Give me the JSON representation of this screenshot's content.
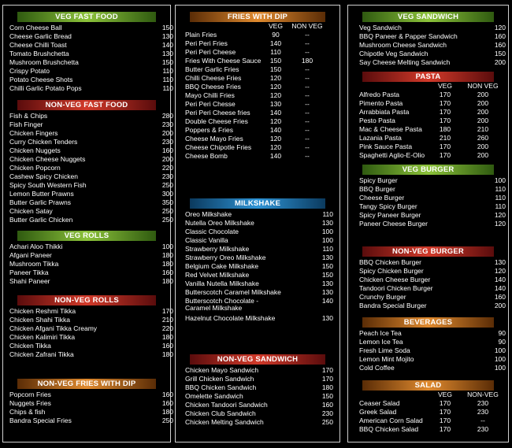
{
  "col1": {
    "sections": [
      {
        "title": "VEG FAST FOOD",
        "color": "green",
        "items": [
          {
            "name": "Corn Cheese Ball",
            "price": "150"
          },
          {
            "name": "Cheese Garlic Bread",
            "price": "130"
          },
          {
            "name": "Cheese Chilli Toast",
            "price": "140"
          },
          {
            "name": "Tomato Brushchetta",
            "price": "130"
          },
          {
            "name": "Mushroom Brushchetta",
            "price": "150"
          },
          {
            "name": "Crispy Potato",
            "price": "110"
          },
          {
            "name": "Potato Cheese Shots",
            "price": "110"
          },
          {
            "name": "Chilli Garlic Potato Pops",
            "price": "110"
          }
        ]
      },
      {
        "title": "NON-VEG FAST FOOD",
        "color": "red",
        "items": [
          {
            "name": "Fish & Chips",
            "price": "280"
          },
          {
            "name": "Fish Finger",
            "price": "230"
          },
          {
            "name": "Chicken Fingers",
            "price": "200"
          },
          {
            "name": "Curry Chicken Tenders",
            "price": "230"
          },
          {
            "name": "Chicken Nuggets",
            "price": "160"
          },
          {
            "name": "Chicken Cheese Nuggets",
            "price": "200"
          },
          {
            "name": "Chicken Popcorn",
            "price": "220"
          },
          {
            "name": "Cashew Spicy Chicken",
            "price": "230"
          },
          {
            "name": "Spicy South Western Fish",
            "price": "250"
          },
          {
            "name": "Lemon Butter Prawns",
            "price": "300"
          },
          {
            "name": "Butter Garlic Prawns",
            "price": "350"
          },
          {
            "name": "Chicken Satay",
            "price": "250"
          },
          {
            "name": "Butter Garlic Chicken",
            "price": "250"
          }
        ]
      },
      {
        "title": "VEG ROLLS",
        "color": "green",
        "items": [
          {
            "name": "Achari Aloo Thikki",
            "price": "100"
          },
          {
            "name": "Afgani Paneer",
            "price": "180"
          },
          {
            "name": "Mushroom Tikka",
            "price": "180"
          },
          {
            "name": "Paneer Tikka",
            "price": "160"
          },
          {
            "name": "Shahi Paneer",
            "price": "180"
          }
        ]
      },
      {
        "title": "NON-VEG ROLLS",
        "color": "red",
        "items": [
          {
            "name": "Chicken Reshmi Tikka",
            "price": "170"
          },
          {
            "name": "Chicken Shahi Tikka",
            "price": "210"
          },
          {
            "name": "Chicken Afgani Tikka Creamy",
            "price": "220"
          },
          {
            "name": "Chicken Kalimiri Tikka",
            "price": "180"
          },
          {
            "name": "Chicken Tikka",
            "price": "160"
          },
          {
            "name": "Chicken Zafrani Tikka",
            "price": "180"
          }
        ]
      },
      {
        "title": "NON-VEG FRIES WITH DIP",
        "color": "orange",
        "items": [
          {
            "name": "Popcorn Fries",
            "price": "160"
          },
          {
            "name": "Nuggets Fries",
            "price": "160"
          },
          {
            "name": "Chips & fish",
            "price": "180"
          },
          {
            "name": "Bandra Special Fries",
            "price": "250"
          }
        ]
      }
    ]
  },
  "col2": {
    "sections": [
      {
        "title": "FRIES WITH DIP",
        "color": "orange",
        "veg_label": "VEG",
        "nonveg_label": "NON VEG",
        "items": [
          {
            "name": "Plain Fries",
            "veg": "90",
            "nonveg": "--"
          },
          {
            "name": "Peri Peri Fries",
            "veg": "140",
            "nonveg": "--"
          },
          {
            "name": "Peri Peri Cheese",
            "veg": "110",
            "nonveg": "--"
          },
          {
            "name": "Fries With Cheese Sauce",
            "veg": "150",
            "nonveg": "180"
          },
          {
            "name": "Butter Garlic Fries",
            "veg": "150",
            "nonveg": "--"
          },
          {
            "name": "Chilli Cheese Fries",
            "veg": "120",
            "nonveg": "--"
          },
          {
            "name": "BBQ Cheese Fries",
            "veg": "120",
            "nonveg": "--"
          },
          {
            "name": "Mayo Chilli Fries",
            "veg": "120",
            "nonveg": "--"
          },
          {
            "name": "Peri Peri Chesse",
            "veg": "130",
            "nonveg": "--"
          },
          {
            "name": "Peri Peri Cheese fries",
            "veg": "140",
            "nonveg": "--"
          },
          {
            "name": "Double Cheese Fries",
            "veg": "120",
            "nonveg": "--"
          },
          {
            "name": "Poppers & Fries",
            "veg": "140",
            "nonveg": "--"
          },
          {
            "name": "Cheese Mayo Fries",
            "veg": "120",
            "nonveg": "--"
          },
          {
            "name": "Cheese Chipotle Fries",
            "veg": "120",
            "nonveg": "--"
          },
          {
            "name": "Cheese Bomb",
            "veg": "140",
            "nonveg": "--"
          }
        ]
      },
      {
        "title": "MILKSHAKE",
        "color": "blue",
        "items": [
          {
            "name": "Oreo Milkshake",
            "price": "110"
          },
          {
            "name": "Nutella Oreo Milkshake",
            "price": "130"
          },
          {
            "name": "Classic Chocolate",
            "price": "100"
          },
          {
            "name": "Classic Vanilla",
            "price": "100"
          },
          {
            "name": "Strawberry Milkshake",
            "price": "110"
          },
          {
            "name": "Strawberry Oreo  Milkshake",
            "price": "130"
          },
          {
            "name": "Belgium Cake Milkshake",
            "price": "150"
          },
          {
            "name": "Red Velvet Milkshake",
            "price": "150"
          },
          {
            "name": "Vanilla Nutella Milkshake",
            "price": "130"
          },
          {
            "name": "Butterscotch Caramel Milkshake",
            "price": "130"
          },
          {
            "name": "Butterscotch Chocolate -",
            "name2": "Caramel Milkshake",
            "price": "140"
          },
          {
            "name": "Hazelnut Chocolate Milkshake",
            "price": "130"
          }
        ]
      },
      {
        "title": "NON-VEG SANDWICH",
        "color": "red",
        "items": [
          {
            "name": "Chicken Mayo Sandwich",
            "price": "170"
          },
          {
            "name": "Grill Chicken Sandwich",
            "price": "170"
          },
          {
            "name": "BBQ Chicken Sandwich",
            "price": "180"
          },
          {
            "name": "Omelette Sandwich",
            "price": "150"
          },
          {
            "name": "Chicken Tandoori Sandwich",
            "price": "160"
          },
          {
            "name": "Chicken Club Sandwich",
            "price": "230"
          },
          {
            "name": "Chicken Melting Sandwich",
            "price": "250"
          }
        ]
      }
    ]
  },
  "col3": {
    "sections": [
      {
        "title": "VEG SANDWICH",
        "color": "green",
        "items": [
          {
            "name": "Veg Sandwich",
            "price": "120"
          },
          {
            "name": "BBQ Paneer & Papper Sandwich",
            "price": "160"
          },
          {
            "name": "Mushroom Cheese Sandwich",
            "price": "160"
          },
          {
            "name": "Chipotle Veg Sandwich",
            "price": "150"
          },
          {
            "name": "Say Cheese Melting Sandwich",
            "price": "200"
          }
        ]
      },
      {
        "title": "PASTA",
        "color": "red",
        "veg_label": "VEG",
        "nonveg_label": "NON VEG",
        "items": [
          {
            "name": "Alfredo Pasta",
            "veg": "170",
            "nonveg": "200"
          },
          {
            "name": "Pimento Pasta",
            "veg": "170",
            "nonveg": "200"
          },
          {
            "name": "Arrabbiata Pasta",
            "veg": "170",
            "nonveg": "200"
          },
          {
            "name": "Pesto Pasta",
            "veg": "170",
            "nonveg": "200"
          },
          {
            "name": "Mac & Cheese Pasta",
            "veg": "180",
            "nonveg": "210"
          },
          {
            "name": "Lazania Pasta",
            "veg": "210",
            "nonveg": "260"
          },
          {
            "name": "Pink Sauce Pasta",
            "veg": "170",
            "nonveg": "200"
          },
          {
            "name": "Spaghetti Aglio-E-Olio",
            "veg": "170",
            "nonveg": "200"
          }
        ]
      },
      {
        "title": "VEG BURGER",
        "color": "green",
        "items": [
          {
            "name": "Spicy Burger",
            "price": "100"
          },
          {
            "name": "BBQ Burger",
            "price": "110"
          },
          {
            "name": "Cheese Burger",
            "price": "110"
          },
          {
            "name": "Tangy Spicy Burger",
            "price": "110"
          },
          {
            "name": "Spicy Paneer Burger",
            "price": "120"
          },
          {
            "name": "Paneer Cheese Burger",
            "price": "120"
          }
        ]
      },
      {
        "title": "NON-VEG BURGER",
        "color": "red",
        "items": [
          {
            "name": "BBQ Chicken Burger",
            "price": "130"
          },
          {
            "name": "Spicy Chicken Burger",
            "price": "120"
          },
          {
            "name": "Chicken Cheese Burger",
            "price": "140"
          },
          {
            "name": "Tandoori Chicken Burger",
            "price": "140"
          },
          {
            "name": "Crunchy Burger",
            "price": "160"
          },
          {
            "name": "Bandra Special Burger",
            "price": "200"
          }
        ]
      },
      {
        "title": "BEVERAGES",
        "color": "orange",
        "items": [
          {
            "name": "Peach Ice Tea",
            "price": "90"
          },
          {
            "name": "Lemon Ice Tea",
            "price": "90"
          },
          {
            "name": "Fresh Lime Soda",
            "price": "100"
          },
          {
            "name": "Lemon  Mint Mojito",
            "price": "100"
          },
          {
            "name": "Cold Coffee",
            "price": "100"
          }
        ]
      },
      {
        "title": "SALAD",
        "color": "orange",
        "veg_label": "VEG",
        "nonveg_label": "NON-VEG",
        "items": [
          {
            "name": "Ceaser Salad",
            "veg": "170",
            "nonveg": "230"
          },
          {
            "name": "Greek Salad",
            "veg": "170",
            "nonveg": "230"
          },
          {
            "name": "American Corn Salad",
            "veg": "170",
            "nonveg": "--"
          },
          {
            "name": "BBQ Chicken Salad",
            "veg": "170",
            "nonveg": "230"
          }
        ]
      }
    ]
  }
}
